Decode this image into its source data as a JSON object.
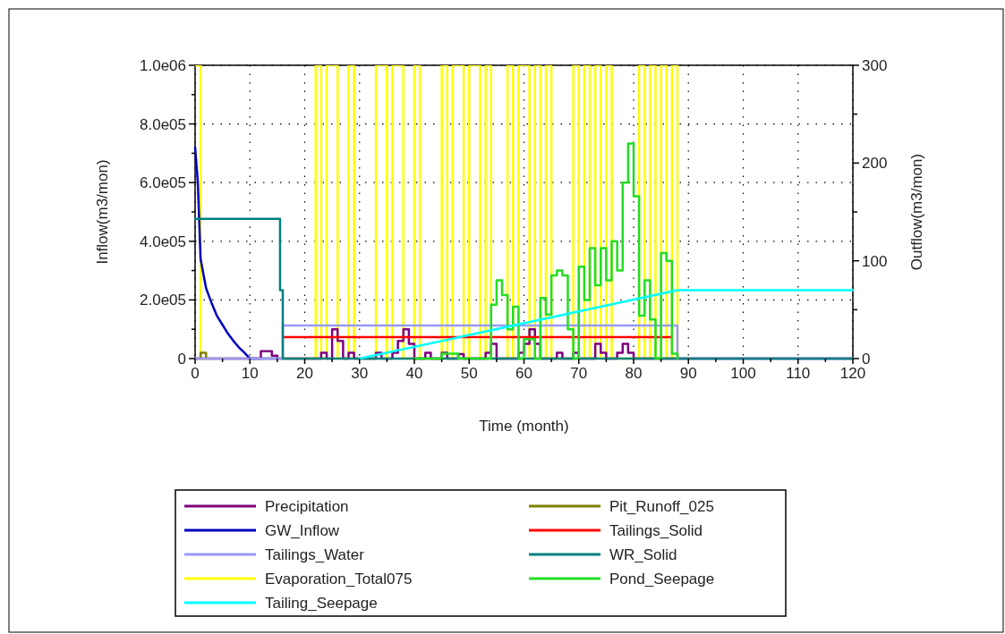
{
  "chart_data": {
    "type": "step",
    "xlabel": "Time (month)",
    "ylabel": "Inflow(m3/mon)",
    "y2label": "Outflow(m3/mon)",
    "xlim": [
      0,
      120
    ],
    "xticks": [
      0,
      {
        "value": 5,
        "label": null
      },
      10,
      {
        "value": 15,
        "label": null
      },
      20,
      {
        "value": 25,
        "label": null
      },
      30,
      {
        "value": 35,
        "label": null
      },
      40,
      {
        "value": 45,
        "label": null
      },
      50,
      {
        "value": 55,
        "label": null
      },
      60,
      {
        "value": 65,
        "label": null
      },
      70,
      {
        "value": 75,
        "label": null
      },
      80,
      {
        "value": 85,
        "label": null
      },
      90,
      {
        "value": 95,
        "label": null
      },
      100,
      {
        "value": 105,
        "label": null
      },
      110,
      {
        "value": 115,
        "label": null
      },
      120
    ],
    "ylim": [
      0,
      1000000
    ],
    "yticks": [
      0,
      {
        "value": 100000,
        "label": null
      },
      {
        "value": 200000,
        "label": "2.0e05"
      },
      {
        "value": 300000,
        "label": null
      },
      {
        "value": 400000,
        "label": "4.0e05"
      },
      {
        "value": 500000,
        "label": null
      },
      {
        "value": 600000,
        "label": "6.0e05"
      },
      {
        "value": 700000,
        "label": null
      },
      {
        "value": 800000,
        "label": "8.0e05"
      },
      {
        "value": 900000,
        "label": null
      },
      {
        "value": 1000000,
        "label": "1.0e06"
      }
    ],
    "y2lim": [
      0,
      300
    ],
    "y2ticks": [
      0,
      {
        "value": 50,
        "label": null
      },
      100,
      {
        "value": 150,
        "label": null
      },
      200,
      {
        "value": 250,
        "label": null
      },
      300
    ],
    "grid": true,
    "legend": "bottom",
    "line_style": "solid",
    "marker": "none",
    "series": [
      {
        "name": "Precipitation",
        "color": "#800080",
        "x": [
          0,
          11,
          12,
          13,
          14,
          15,
          22,
          23,
          24,
          25,
          26,
          27,
          28,
          29,
          33,
          34,
          36,
          37,
          38,
          39,
          40,
          42,
          43,
          45,
          46,
          48,
          49,
          53,
          54,
          55,
          59,
          60,
          61,
          62,
          63,
          66,
          67,
          69,
          70,
          73,
          74,
          75,
          77,
          78,
          79,
          80,
          120
        ],
        "values": [
          0,
          0,
          25000,
          25000,
          10000,
          0,
          0,
          20000,
          0,
          100000,
          60000,
          0,
          20000,
          0,
          20000,
          0,
          20000,
          60000,
          100000,
          50000,
          0,
          20000,
          0,
          20000,
          0,
          15000,
          0,
          20000,
          50000,
          0,
          20000,
          50000,
          100000,
          50000,
          0,
          20000,
          0,
          20000,
          0,
          50000,
          20000,
          0,
          20000,
          50000,
          20000,
          0,
          0
        ]
      },
      {
        "name": "Pit_Runoff_025",
        "color": "#808000",
        "x": [
          0,
          1,
          2
        ],
        "values": [
          0,
          20000,
          0
        ]
      },
      {
        "name": "GW_Inflow",
        "color": "#0000c0",
        "type": "line",
        "x": [
          0,
          0.5,
          1,
          2,
          3,
          4,
          5,
          6,
          7,
          8,
          9,
          10,
          15
        ],
        "values": [
          720000,
          600000,
          340000,
          240000,
          190000,
          145000,
          115000,
          85000,
          60000,
          38000,
          20000,
          0,
          0
        ]
      },
      {
        "name": "Tailings_Solid",
        "color": "#ff0000",
        "axis": "y2",
        "x": [
          16,
          87
        ],
        "values": [
          22,
          22
        ]
      },
      {
        "name": "Tailings_Water",
        "color": "#9999ff",
        "x": [
          0,
          15.8,
          16,
          87.5,
          88,
          120
        ],
        "values": [
          0,
          0,
          113000,
          113000,
          0,
          0
        ]
      },
      {
        "name": "WR_Solid",
        "color": "#008080",
        "axis": "y2",
        "x": [
          0,
          15,
          15.5,
          16,
          120
        ],
        "values": [
          143,
          143,
          70,
          0,
          0
        ]
      },
      {
        "name": "Evaporation_Total075",
        "color": "#ffff00",
        "axis": "y2",
        "x": [
          0,
          1,
          2,
          21,
          22,
          23,
          24,
          25,
          26,
          27,
          28,
          29,
          32,
          33,
          34,
          35,
          36,
          37,
          38,
          39,
          40,
          41,
          44,
          45,
          46,
          47,
          48,
          49,
          50,
          51,
          52,
          53,
          54,
          56,
          57,
          58,
          59,
          60,
          61,
          62,
          63,
          64,
          65,
          68,
          69,
          70,
          71,
          72,
          73,
          74,
          75,
          76,
          80,
          81,
          82,
          83,
          84,
          85,
          86,
          87,
          88
        ],
        "values": [
          300,
          0,
          0,
          0,
          300,
          0,
          300,
          300,
          0,
          0,
          300,
          0,
          0,
          300,
          300,
          0,
          300,
          300,
          0,
          0,
          300,
          0,
          0,
          300,
          0,
          300,
          300,
          0,
          300,
          300,
          0,
          300,
          0,
          0,
          300,
          0,
          300,
          300,
          0,
          300,
          0,
          300,
          0,
          0,
          300,
          0,
          300,
          0,
          300,
          0,
          300,
          0,
          0,
          300,
          0,
          300,
          0,
          300,
          0,
          300,
          0
        ]
      },
      {
        "name": "Pond_Seepage",
        "color": "#22dd22",
        "axis": "y2",
        "x": [
          40,
          45,
          48,
          52,
          54,
          55,
          56,
          57,
          58,
          59,
          60,
          62,
          63,
          64,
          65,
          66,
          67,
          68,
          69,
          70,
          71,
          72,
          73,
          74,
          75,
          76,
          77,
          78,
          79,
          80,
          81,
          82,
          83,
          84,
          85,
          86,
          87,
          88
        ],
        "values": [
          0,
          5,
          0,
          0,
          55,
          80,
          65,
          30,
          53,
          0,
          20,
          0,
          62,
          45,
          85,
          90,
          85,
          30,
          0,
          94,
          60,
          113,
          75,
          113,
          80,
          120,
          90,
          180,
          220,
          166,
          44,
          80,
          40,
          0,
          108,
          100,
          5,
          0
        ]
      },
      {
        "name": "Tailing_Seepage",
        "color": "#00ffff",
        "axis": "y2",
        "type": "line",
        "x": [
          30,
          88,
          120
        ],
        "values": [
          0,
          70,
          70
        ]
      }
    ]
  }
}
